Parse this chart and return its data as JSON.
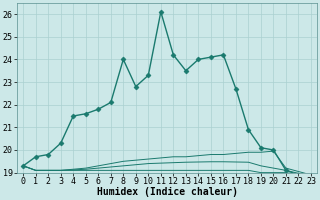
{
  "x": [
    0,
    1,
    2,
    3,
    4,
    5,
    6,
    7,
    8,
    9,
    10,
    11,
    12,
    13,
    14,
    15,
    16,
    17,
    18,
    19,
    20,
    21,
    22,
    23
  ],
  "line1": [
    19.3,
    19.7,
    19.8,
    20.3,
    21.5,
    21.6,
    21.8,
    22.1,
    24.0,
    22.8,
    23.3,
    26.1,
    24.2,
    23.5,
    24.0,
    24.1,
    24.2,
    22.7,
    20.9,
    20.1,
    20.0,
    19.1,
    18.9,
    18.7
  ],
  "line2": [
    19.3,
    19.1,
    19.1,
    19.1,
    19.15,
    19.2,
    19.3,
    19.4,
    19.5,
    19.55,
    19.6,
    19.65,
    19.7,
    19.7,
    19.75,
    19.8,
    19.8,
    19.85,
    19.9,
    19.9,
    19.95,
    19.2,
    19.05,
    18.9
  ],
  "line3": [
    19.3,
    19.1,
    19.1,
    19.1,
    19.1,
    19.1,
    19.1,
    19.1,
    19.1,
    19.1,
    19.1,
    19.1,
    19.1,
    19.1,
    19.1,
    19.1,
    19.1,
    19.1,
    19.1,
    19.0,
    19.0,
    19.0,
    18.9,
    18.8
  ],
  "line4": [
    19.3,
    19.1,
    19.1,
    19.1,
    19.12,
    19.15,
    19.2,
    19.25,
    19.3,
    19.35,
    19.4,
    19.42,
    19.44,
    19.46,
    19.47,
    19.48,
    19.48,
    19.47,
    19.46,
    19.3,
    19.2,
    19.1,
    18.97,
    18.85
  ],
  "line_color": "#1a7a6e",
  "bg_color": "#cce8e8",
  "grid_color": "#aad0d0",
  "xlabel": "Humidex (Indice chaleur)",
  "ylim": [
    19,
    26.5
  ],
  "xlim": [
    -0.5,
    23.5
  ],
  "yticks": [
    19,
    20,
    21,
    22,
    23,
    24,
    25,
    26
  ],
  "xticks": [
    0,
    1,
    2,
    3,
    4,
    5,
    6,
    7,
    8,
    9,
    10,
    11,
    12,
    13,
    14,
    15,
    16,
    17,
    18,
    19,
    20,
    21,
    22,
    23
  ],
  "markersize": 2.5,
  "linewidth": 1.0,
  "xlabel_fontsize": 7,
  "tick_fontsize": 6
}
